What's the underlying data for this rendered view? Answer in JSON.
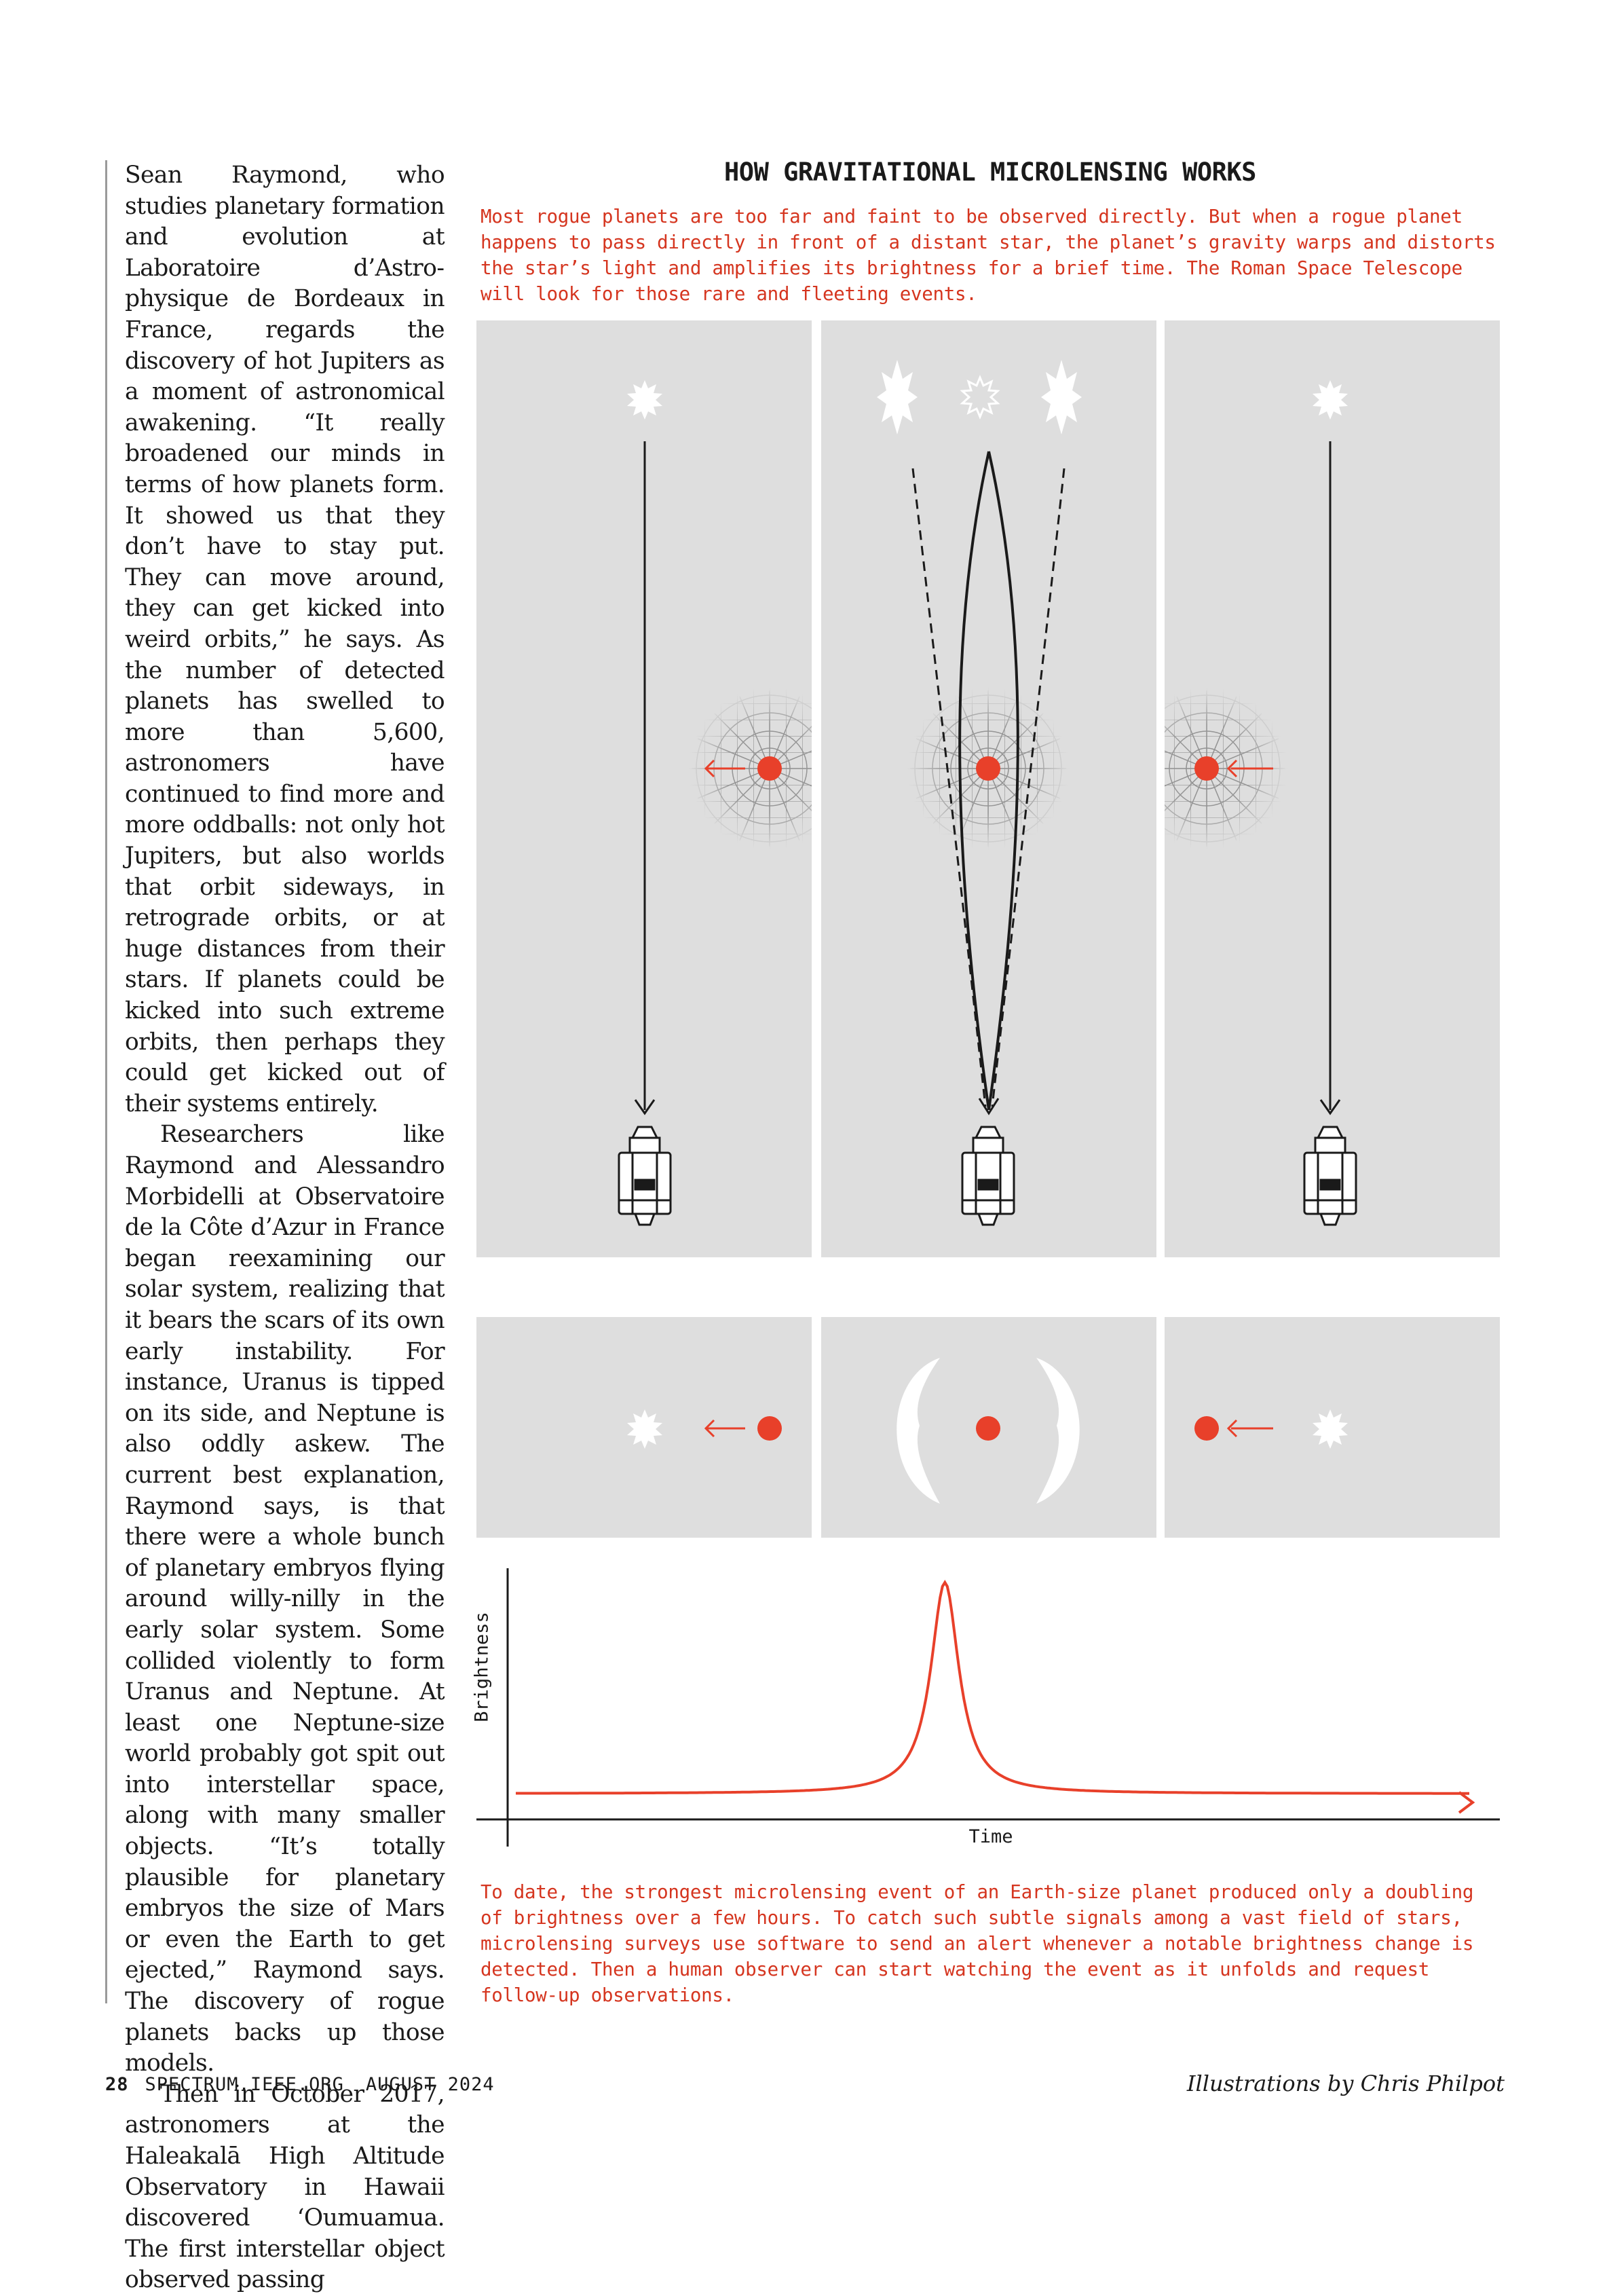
{
  "article": {
    "paragraphs": [
      "Sean Raymond, who studies planetary formation and evo­lution at Laboratoire d’Astro­physique de Bordeaux in France, regards the discovery of hot Jupiters as a moment of astronomical awakening. “It really broadened our minds in terms of how plan­ets form. It showed us that they don’t have to stay put. They can move around, they can get kicked into weird orbits,” he says. As the number of detected planets has swelled to more than 5,600, astronomers have continued to find more and more oddballs: not only hot Jupiters, but also worlds that orbit sideways, in retrograde orbits, or at huge distances from their stars. If planets could be kicked into such extreme orbits, then perhaps they could get kicked out of their systems entirely.",
      "Researchers like Raymond and Alessandro Morbidelli at Observatoire de la Côte d’Azur in France began reexamining our solar system, realizing that it bears the scars of its own early instability. For instance, Uranus is tipped on its side, and Neptune is also oddly askew. The current best expla­nation, Raymond says, is that there were a whole bunch of planetary embryos flying around willy-nilly in the early solar system. Some collided violently to form Uranus and Neptune. At least one Neptune-size world probably got spit out into interstellar space, along with many smaller objects. “It’s totally plausible for planetary embryos the size of Mars or even the Earth to get ejected,” Raymond says. The discovery of rogue planets backs up those models.",
      "Then in October 2017, astronomers at the Haleakalā High Altitude Observatory in Hawaii discovered ‘Oumua­mua. The first interstellar object observed passing"
    ]
  },
  "figure": {
    "title": "HOW GRAVITATIONAL MICROLENSING WORKS",
    "caption_top": "Most rogue planets are too far and faint to be observed directly. But when a rogue planet happens to pass directly in front of a distant star, the planet’s gravity warps and distorts the star’s light and amplifies its brightness for a brief time. The Roman Space Telescope will look for those rare and fleeting events.",
    "caption_bottom": "To date, the strongest microlensing event of an Earth-size planet produced only a doubling of brightness over a few hours. To catch such subtle signals among a vast field of stars, microlensing surveys use software to send an alert whenever a notable brightness change is detected. Then a human observer can start watching the event as it unfolds and request follow-up observations.",
    "colors": {
      "accent": "#e8402a",
      "panel": "#dedede",
      "ink": "#1a1a1a"
    }
  },
  "chart_data": {
    "type": "line",
    "xlabel": "Time",
    "ylabel": "Brightness",
    "series": [
      {
        "x": [
          0,
          10,
          20,
          30,
          35,
          40,
          42,
          44,
          45,
          46,
          48,
          50,
          55,
          60,
          70,
          80,
          90,
          100
        ],
        "y": [
          0.04,
          0.045,
          0.05,
          0.07,
          0.09,
          0.14,
          0.2,
          0.4,
          1.0,
          0.4,
          0.2,
          0.14,
          0.09,
          0.07,
          0.05,
          0.045,
          0.04,
          0.04
        ]
      }
    ],
    "xlim": [
      0,
      100
    ],
    "ylim": [
      0,
      1.08
    ],
    "grid": false
  },
  "footer": {
    "page_number": "28",
    "site": "SPECTRUM.IEEE.ORG",
    "date": "AUGUST 2024",
    "credit": "Illustrations by Chris Philpot"
  }
}
